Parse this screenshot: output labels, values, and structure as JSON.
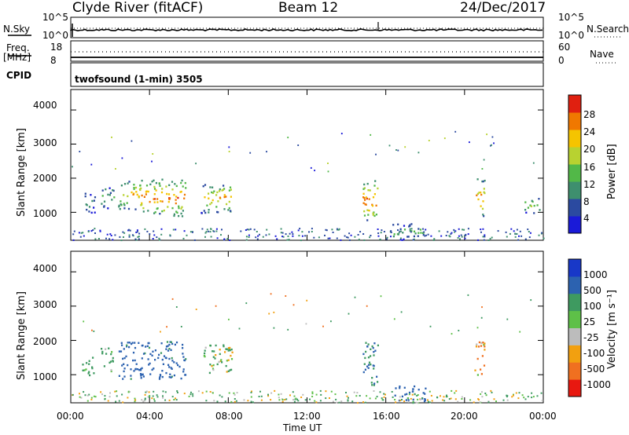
{
  "header": {
    "title": "Clyde River (fitACF)",
    "beam": "Beam 12",
    "date": "24/Dec/2017"
  },
  "top_panels": {
    "nsky_label": "N.Sky",
    "nsky_ticks": [
      "10^5",
      "10^0"
    ],
    "nsearch_label": "N.Search",
    "nsearch_ticks": [
      "10^5",
      "10^0"
    ],
    "freq_label": "Freq.",
    "freq_unit": "[MHz]",
    "freq_ticks": [
      "18",
      "8"
    ],
    "nave_label": "Nave",
    "nave_ticks": [
      "60",
      "0"
    ],
    "cpid_label": "CPID",
    "cpid_text": "twofsound (1-min) 3505"
  },
  "colors": {
    "power_scale": [
      "#1a1ad8",
      "#2b4aa0",
      "#3e8f6e",
      "#52b848",
      "#b8d230",
      "#f5c400",
      "#f07800",
      "#e02010"
    ],
    "velocity_scale": [
      "#1838c8",
      "#2c62b0",
      "#3e9a60",
      "#5ec048",
      "#bcbcbc",
      "#f2a010",
      "#f07020",
      "#e81810"
    ],
    "ground_scatter": "#808080"
  },
  "chart_data": [
    {
      "type": "heatmap",
      "title": "",
      "ylabel": "Slant Range [km]",
      "ylim": [
        180,
        4600
      ],
      "yticks": [
        "1000",
        "2000",
        "3000",
        "4000"
      ],
      "colorbar_label": "Power [dB]",
      "colorbar_ticks": [
        "4",
        "8",
        "12",
        "16",
        "20",
        "24",
        "28"
      ],
      "colorbar_range": [
        0,
        32
      ],
      "echo_regions": [
        {
          "t": [
            0.5,
            1.2
          ],
          "range_km": [
            1000,
            1600
          ],
          "power_db": 10
        },
        {
          "t": [
            1.5,
            2.2
          ],
          "range_km": [
            1100,
            1800
          ],
          "power_db": 14
        },
        {
          "t": [
            2.4,
            3.5
          ],
          "range_km": [
            1100,
            2000
          ],
          "power_db": 22
        },
        {
          "t": [
            3.5,
            5.8
          ],
          "range_km": [
            900,
            2000
          ],
          "power_db": 28
        },
        {
          "t": [
            6.6,
            8.2
          ],
          "range_km": [
            1000,
            1900
          ],
          "power_db": 24
        },
        {
          "t": [
            14.8,
            15.6
          ],
          "range_km": [
            700,
            2000
          ],
          "power_db": 28
        },
        {
          "t": [
            20.5,
            21.0
          ],
          "range_km": [
            900,
            2000
          ],
          "power_db": 26
        },
        {
          "t": [
            23.0,
            23.8
          ],
          "range_km": [
            1000,
            1500
          ],
          "power_db": 16
        },
        {
          "t": [
            16.2,
            18.0
          ],
          "range_km": [
            200,
            700
          ],
          "power_db": 14
        }
      ]
    },
    {
      "type": "heatmap",
      "title": "",
      "ylabel": "Slant Range [km]",
      "ylim": [
        180,
        4600
      ],
      "yticks": [
        "1000",
        "2000",
        "3000",
        "4000"
      ],
      "xlabel": "Time UT",
      "xticks": [
        "00:00",
        "04:00",
        "08:00",
        "12:00",
        "16:00",
        "20:00",
        "00:00"
      ],
      "colorbar_label": "Velocity [m s⁻¹]",
      "colorbar_ticks": [
        "1000",
        "500",
        "100",
        "25",
        "-25",
        "-100",
        "-500",
        "-1000"
      ],
      "echo_regions": [
        {
          "t": [
            0.5,
            1.2
          ],
          "range_km": [
            1000,
            1600
          ],
          "velocity": 300
        },
        {
          "t": [
            1.5,
            2.2
          ],
          "range_km": [
            1100,
            1800
          ],
          "velocity": 200
        },
        {
          "t": [
            2.4,
            5.8
          ],
          "range_km": [
            900,
            2000
          ],
          "velocity": 700
        },
        {
          "t": [
            6.6,
            8.2
          ],
          "range_km": [
            1000,
            1900
          ],
          "velocity": 150
        },
        {
          "t": [
            14.8,
            15.6
          ],
          "range_km": [
            700,
            2000
          ],
          "velocity": 500
        },
        {
          "t": [
            20.5,
            21.0
          ],
          "range_km": [
            900,
            2000
          ],
          "velocity": -150
        },
        {
          "t": [
            16.2,
            18.0
          ],
          "range_km": [
            200,
            700
          ],
          "velocity": 700
        }
      ]
    }
  ]
}
